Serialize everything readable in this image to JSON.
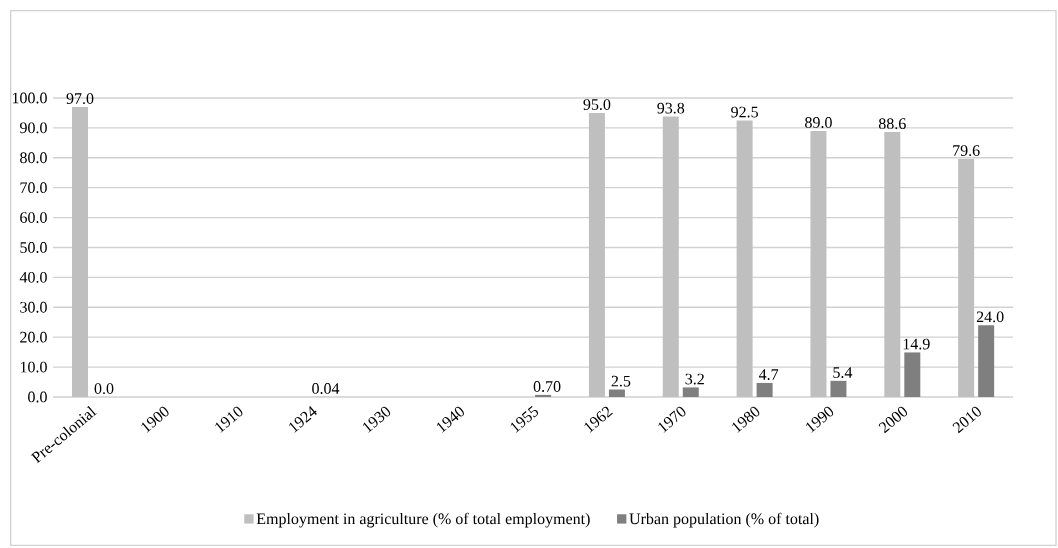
{
  "chart_data": {
    "type": "bar",
    "categories": [
      "Pre-colonial",
      "1900",
      "1910",
      "1924",
      "1930",
      "1940",
      "1955",
      "1962",
      "1970",
      "1980",
      "1990",
      "2000",
      "2010"
    ],
    "series": [
      {
        "name": "Employment in agriculture (% of total employment)",
        "color": "#bfbfbf",
        "values": [
          97.0,
          null,
          null,
          null,
          null,
          null,
          null,
          95.0,
          93.8,
          92.5,
          89.0,
          88.6,
          79.6
        ],
        "value_labels": [
          "97.0",
          null,
          null,
          null,
          null,
          null,
          null,
          "95.0",
          "93.8",
          "92.5",
          "89.0",
          "88.6",
          "79.6"
        ]
      },
      {
        "name": "Urban population (% of total)",
        "color": "#7f7f7f",
        "values": [
          0.0,
          null,
          null,
          0.04,
          null,
          null,
          0.7,
          2.5,
          3.2,
          4.7,
          5.4,
          14.9,
          24.0
        ],
        "value_labels": [
          "0.0",
          null,
          null,
          "0.04",
          null,
          null,
          "0.70",
          "2.5",
          "3.2",
          "4.7",
          "5.4",
          "14.9",
          "24.0"
        ]
      }
    ],
    "ylim": [
      0,
      100
    ],
    "yticks": [
      {
        "value": 0,
        "label": "0.0"
      },
      {
        "value": 10,
        "label": "10.0"
      },
      {
        "value": 20,
        "label": "20.0"
      },
      {
        "value": 30,
        "label": "30.0"
      },
      {
        "value": 40,
        "label": "40.0"
      },
      {
        "value": 50,
        "label": "50.0"
      },
      {
        "value": 60,
        "label": "60.0"
      },
      {
        "value": 70,
        "label": "70.0"
      },
      {
        "value": 80,
        "label": "80.0"
      },
      {
        "value": 90,
        "label": "90.0"
      },
      {
        "value": 100,
        "label": "100.0"
      }
    ],
    "grid": "y",
    "legend": "bottom"
  }
}
